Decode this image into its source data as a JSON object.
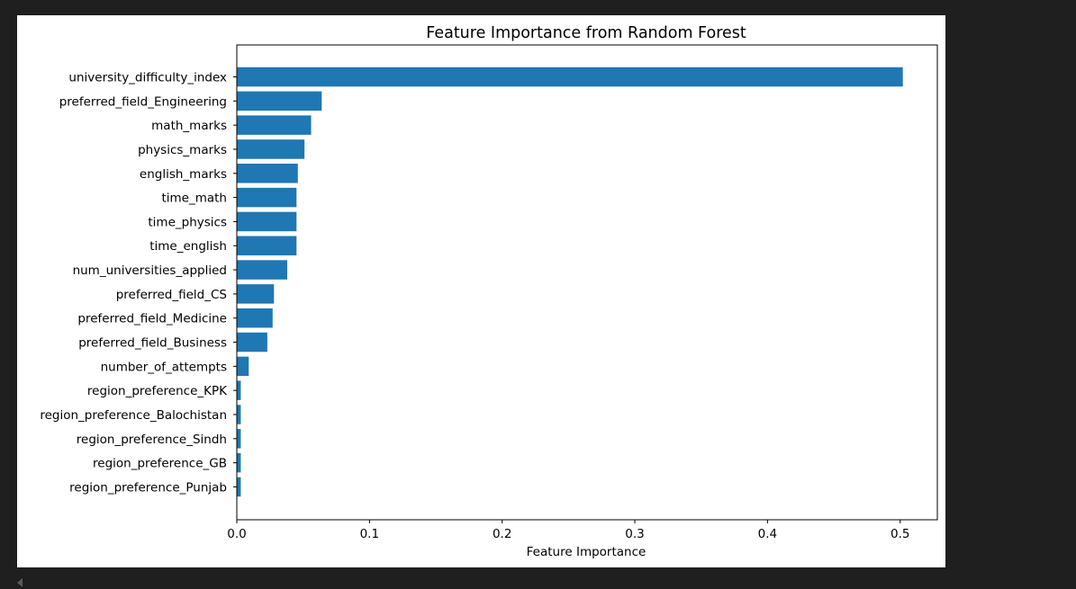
{
  "chart_data": {
    "type": "bar",
    "orientation": "horizontal",
    "title": "Feature Importance from Random Forest",
    "xlabel": "Feature Importance",
    "ylabel": "",
    "xlim": [
      0,
      0.528
    ],
    "xticks": [
      0.0,
      0.1,
      0.2,
      0.3,
      0.4,
      0.5
    ],
    "xtick_labels": [
      "0.0",
      "0.1",
      "0.2",
      "0.3",
      "0.4",
      "0.5"
    ],
    "grid": false,
    "bar_color": "#1f77b4",
    "categories": [
      "university_difficulty_index",
      "preferred_field_Engineering",
      "math_marks",
      "physics_marks",
      "english_marks",
      "time_math",
      "time_physics",
      "time_english",
      "num_universities_applied",
      "preferred_field_CS",
      "preferred_field_Medicine",
      "preferred_field_Business",
      "number_of_attempts",
      "region_preference_KPK",
      "region_preference_Balochistan",
      "region_preference_Sindh",
      "region_preference_GB",
      "region_preference_Punjab"
    ],
    "values": [
      0.502,
      0.064,
      0.056,
      0.051,
      0.046,
      0.045,
      0.045,
      0.045,
      0.038,
      0.028,
      0.027,
      0.023,
      0.009,
      0.003,
      0.003,
      0.003,
      0.003,
      0.003
    ]
  },
  "ui": {
    "background_color": "#1f1f1f",
    "figure_background": "#ffffff",
    "scroll_arrow_icon": "left-triangle-icon"
  }
}
